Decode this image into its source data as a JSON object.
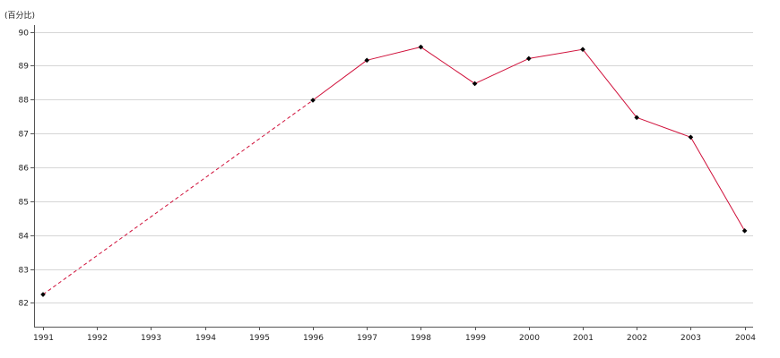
{
  "chart_data": {
    "type": "line",
    "unit_label": "(百分比)",
    "x": [
      "1991",
      "1992",
      "1993",
      "1994",
      "1995",
      "1996",
      "1997",
      "1998",
      "1999",
      "2000",
      "2001",
      "2002",
      "2003",
      "2004"
    ],
    "series": [
      {
        "values": [
          82.25,
          null,
          null,
          null,
          null,
          87.98,
          89.16,
          89.55,
          88.47,
          89.21,
          89.48,
          87.47,
          86.89,
          84.13
        ],
        "gap_style": "dashed"
      }
    ],
    "ylim": [
      81.3,
      90.0
    ],
    "yticks": [
      82,
      83,
      84,
      85,
      86,
      87,
      88,
      89,
      90
    ],
    "grid": true,
    "legend": "none"
  },
  "colors": {
    "line": "#d0103a",
    "marker": "#000000",
    "grid": "#d6d6d6",
    "axis": "#555555"
  }
}
